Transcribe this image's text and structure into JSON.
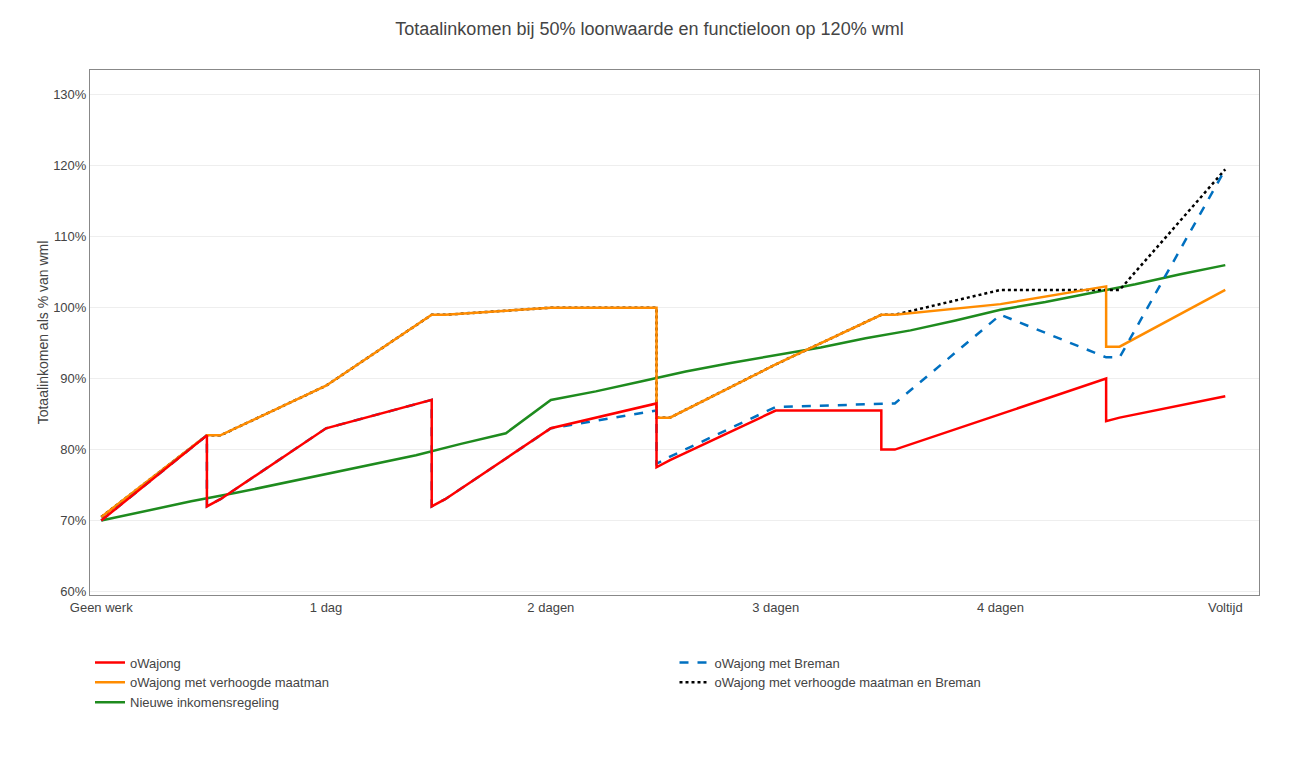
{
  "chart_data": {
    "type": "line",
    "title": "Totaalinkomen bij 50% loonwaarde en functieloon op 120% wml",
    "ylabel": "Totaalinkomen als % van wml",
    "xlim": [
      -0.05,
      5.15
    ],
    "xticks": [
      {
        "value": 0,
        "label": "Geen werk"
      },
      {
        "value": 1,
        "label": "1 dag"
      },
      {
        "value": 2,
        "label": "2 dagen"
      },
      {
        "value": 3,
        "label": "3 dagen"
      },
      {
        "value": 4,
        "label": "4 dagen"
      },
      {
        "value": 5,
        "label": "Voltijd"
      }
    ],
    "ylim": [
      0.595,
      1.335
    ],
    "yticks": [
      {
        "value": 0.6,
        "label": "60%"
      },
      {
        "value": 0.7,
        "label": "70%"
      },
      {
        "value": 0.8,
        "label": "80%"
      },
      {
        "value": 0.9,
        "label": "90%"
      },
      {
        "value": 1.0,
        "label": "100%"
      },
      {
        "value": 1.1,
        "label": "110%"
      },
      {
        "value": 1.2,
        "label": "120%"
      },
      {
        "value": 1.3,
        "label": "130%"
      }
    ],
    "grid": "y",
    "legend": "bottom",
    "series": [
      {
        "name": "oWajong",
        "color": "#FF0000",
        "line_style": "solid",
        "x": [
          0,
          0.47,
          0.47,
          0.53,
          1.0,
          1.47,
          1.47,
          1.53,
          2.0,
          2.47,
          2.47,
          2.53,
          3.0,
          3.47,
          3.47,
          3.53,
          4.0,
          4.47,
          4.47,
          4.53,
          5.0
        ],
        "values": [
          0.7,
          0.82,
          0.72,
          0.73,
          0.83,
          0.87,
          0.72,
          0.73,
          0.83,
          0.865,
          0.775,
          0.785,
          0.855,
          0.855,
          0.8,
          0.8,
          0.85,
          0.9,
          0.84,
          0.845,
          0.875
        ]
      },
      {
        "name": "oWajong met Breman",
        "color": "#0070C0",
        "line_style": "dashed",
        "x": [
          0,
          0.47,
          0.47,
          0.53,
          1.0,
          1.47,
          1.47,
          1.53,
          2.0,
          2.47,
          2.47,
          2.53,
          3.0,
          3.47,
          3.47,
          3.53,
          4.0,
          4.47,
          4.53,
          5.0
        ],
        "values": [
          0.7,
          0.82,
          0.72,
          0.73,
          0.83,
          0.87,
          0.72,
          0.73,
          0.83,
          0.855,
          0.78,
          0.79,
          0.86,
          0.865,
          0.865,
          0.865,
          0.99,
          0.93,
          0.93,
          1.195
        ]
      },
      {
        "name": "oWajong met verhoogde maatman",
        "color": "#FF8C00",
        "line_style": "solid",
        "x": [
          0,
          0.47,
          0.53,
          1.0,
          1.47,
          1.53,
          2.0,
          2.47,
          2.47,
          2.53,
          3.0,
          3.47,
          3.53,
          4.0,
          4.47,
          4.47,
          4.53,
          5.0
        ],
        "values": [
          0.705,
          0.82,
          0.82,
          0.89,
          0.99,
          0.99,
          1.0,
          1.0,
          0.845,
          0.845,
          0.92,
          0.99,
          0.99,
          1.005,
          1.03,
          0.945,
          0.945,
          1.025
        ]
      },
      {
        "name": "oWajong met verhoogde maatman en Breman",
        "color": "#000000",
        "line_style": "dotted",
        "x": [
          0,
          0.47,
          0.53,
          1.0,
          1.47,
          1.53,
          2.0,
          2.47,
          2.47,
          2.53,
          3.0,
          3.47,
          3.53,
          4.0,
          4.53,
          5.0
        ],
        "values": [
          0.705,
          0.82,
          0.82,
          0.89,
          0.99,
          0.99,
          1.0,
          1.0,
          0.845,
          0.845,
          0.92,
          0.99,
          0.99,
          1.025,
          1.025,
          1.195
        ]
      },
      {
        "name": "Nieuwe inkomensregeling",
        "color": "#1E8B1E",
        "line_style": "solid",
        "x": [
          0,
          0.2,
          0.4,
          0.6,
          0.8,
          1.0,
          1.2,
          1.4,
          1.6,
          1.8,
          2.0,
          2.2,
          2.4,
          2.6,
          2.8,
          3.0,
          3.2,
          3.4,
          3.6,
          3.8,
          4.0,
          4.2,
          4.4,
          4.6,
          4.8,
          5.0
        ],
        "values": [
          0.7,
          0.714,
          0.727,
          0.739,
          0.752,
          0.766,
          0.778,
          0.792,
          0.808,
          0.823,
          0.87,
          0.882,
          0.896,
          0.91,
          0.922,
          0.933,
          0.944,
          0.957,
          0.968,
          0.982,
          0.997,
          1.008,
          1.02,
          1.033,
          1.047,
          1.06
        ]
      }
    ]
  }
}
